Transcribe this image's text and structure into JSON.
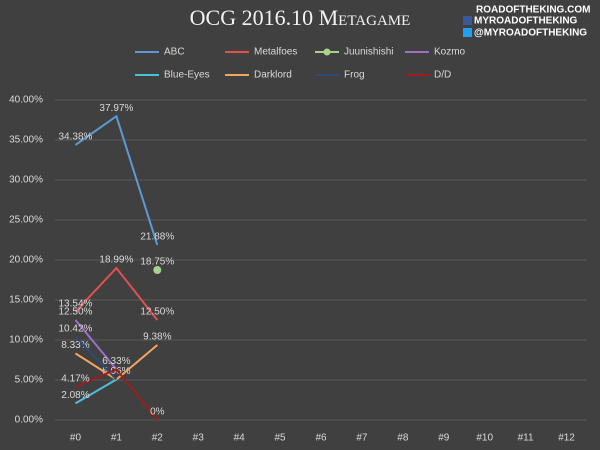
{
  "chart_data": {
    "type": "line",
    "title": "OCG 2016.10 Metagame",
    "watermark": [
      "ROADOFTHEKING.COM",
      "MYROADOFTHEKING",
      "@MYROADOFTHEKING"
    ],
    "categories": [
      "#0",
      "#1",
      "#2",
      "#3",
      "#4",
      "#5",
      "#6",
      "#7",
      "#8",
      "#9",
      "#10",
      "#11",
      "#12"
    ],
    "series": [
      {
        "name": "ABC",
        "color": "#5b9bd5",
        "values": [
          34.38,
          37.97,
          21.88,
          null,
          null,
          null,
          null,
          null,
          null,
          null,
          null,
          null,
          null
        ],
        "value_labels": [
          "34.38%",
          "37.97%",
          "21.88%",
          null,
          null,
          null,
          null,
          null,
          null,
          null,
          null,
          null,
          null
        ]
      },
      {
        "name": "Metalfoes",
        "color": "#e05050",
        "values": [
          13.54,
          18.99,
          12.5,
          null,
          null,
          null,
          null,
          null,
          null,
          null,
          null,
          null,
          null
        ],
        "value_labels": [
          "13.54%",
          "18.99%",
          "12.50%",
          null,
          null,
          null,
          null,
          null,
          null,
          null,
          null,
          null,
          null
        ]
      },
      {
        "name": "Juunishishi",
        "color": "#a9d18e",
        "marker": true,
        "values": [
          null,
          null,
          18.75,
          null,
          null,
          null,
          null,
          null,
          null,
          null,
          null,
          null,
          null
        ],
        "value_labels": [
          null,
          null,
          "18.75%",
          null,
          null,
          null,
          null,
          null,
          null,
          null,
          null,
          null,
          null
        ]
      },
      {
        "name": "Kozmo",
        "color": "#9a6fc7",
        "values": [
          12.5,
          6.33,
          null,
          null,
          null,
          null,
          null,
          null,
          null,
          null,
          null,
          null,
          null
        ],
        "value_labels": [
          "12.50%",
          "6.33%",
          null,
          null,
          null,
          null,
          null,
          null,
          null,
          null,
          null,
          null,
          null
        ]
      },
      {
        "name": "Blue-Eyes",
        "color": "#4bc0d9",
        "values": [
          2.08,
          5.06,
          null,
          null,
          null,
          null,
          null,
          null,
          null,
          null,
          null,
          null,
          null
        ],
        "value_labels": [
          "2.08%",
          "5.06%",
          null,
          null,
          null,
          null,
          null,
          null,
          null,
          null,
          null,
          null,
          null
        ]
      },
      {
        "name": "Darklord",
        "color": "#f4a460",
        "values": [
          8.33,
          5.06,
          9.38,
          null,
          null,
          null,
          null,
          null,
          null,
          null,
          null,
          null,
          null
        ],
        "value_labels": [
          "8.33%",
          null,
          "9.38%",
          null,
          null,
          null,
          null,
          null,
          null,
          null,
          null,
          null,
          null
        ]
      },
      {
        "name": "Frog",
        "color": "#2e4a7a",
        "values": [
          10.42,
          5.06,
          null,
          null,
          null,
          null,
          null,
          null,
          null,
          null,
          null,
          null,
          null
        ],
        "value_labels": [
          "10.42%",
          null,
          null,
          null,
          null,
          null,
          null,
          null,
          null,
          null,
          null,
          null,
          null
        ]
      },
      {
        "name": "D/D",
        "color": "#9e1c1c",
        "values": [
          4.17,
          6.33,
          0,
          null,
          null,
          null,
          null,
          null,
          null,
          null,
          null,
          null,
          null
        ],
        "value_labels": [
          "4.17%",
          null,
          "0%",
          null,
          null,
          null,
          null,
          null,
          null,
          null,
          null,
          null,
          null
        ]
      }
    ],
    "ylim": [
      0,
      40
    ],
    "yticks": [
      {
        "value": 0,
        "label": "0.00%"
      },
      {
        "value": 5,
        "label": "5.00%"
      },
      {
        "value": 10,
        "label": "10.00%"
      },
      {
        "value": 15,
        "label": "15.00%"
      },
      {
        "value": 20,
        "label": "20.00%"
      },
      {
        "value": 25,
        "label": "25.00%"
      },
      {
        "value": 30,
        "label": "30.00%"
      },
      {
        "value": 35,
        "label": "35.00%"
      },
      {
        "value": 40,
        "label": "40.00%"
      }
    ],
    "grid": true,
    "legend": "top"
  }
}
